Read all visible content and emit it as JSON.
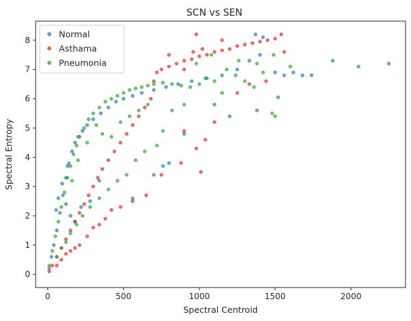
{
  "chart_data": {
    "type": "scatter",
    "title": "SCN vs SEN",
    "xlabel": "Spectral Centroid",
    "ylabel": "Spectral Entropy",
    "xlim": [
      -80,
      2360
    ],
    "ylim": [
      -0.45,
      8.65
    ],
    "xticks": [
      0,
      500,
      1000,
      1500,
      2000
    ],
    "yticks": [
      0,
      1,
      2,
      3,
      4,
      5,
      6,
      7,
      8
    ],
    "grid": false,
    "legend_position": "top-left",
    "series": [
      {
        "name": "Normal",
        "color": "#1f77b4",
        "points": [
          [
            10,
            0.2
          ],
          [
            25,
            0.6
          ],
          [
            40,
            1.0
          ],
          [
            60,
            1.5
          ],
          [
            80,
            2.1
          ],
          [
            100,
            2.7
          ],
          [
            120,
            3.3
          ],
          [
            140,
            3.8
          ],
          [
            160,
            4.2
          ],
          [
            180,
            4.5
          ],
          [
            200,
            4.7
          ],
          [
            230,
            4.9
          ],
          [
            260,
            5.1
          ],
          [
            300,
            5.3
          ],
          [
            350,
            5.5
          ],
          [
            400,
            5.7
          ],
          [
            450,
            5.9
          ],
          [
            500,
            6.0
          ],
          [
            560,
            6.1
          ],
          [
            620,
            6.2
          ],
          [
            700,
            6.3
          ],
          [
            780,
            6.4
          ],
          [
            860,
            6.5
          ],
          [
            950,
            6.6
          ],
          [
            1050,
            6.7
          ],
          [
            1150,
            6.8
          ],
          [
            1250,
            7.0
          ],
          [
            1330,
            7.3
          ],
          [
            1400,
            7.5
          ],
          [
            1370,
            8.2
          ],
          [
            1420,
            8.1
          ],
          [
            1500,
            6.9
          ],
          [
            1560,
            6.8
          ],
          [
            1620,
            6.9
          ],
          [
            1680,
            6.8
          ],
          [
            1740,
            6.8
          ],
          [
            1880,
            7.3
          ],
          [
            2050,
            7.1
          ],
          [
            2250,
            7.2
          ],
          [
            1520,
            6.05
          ],
          [
            1380,
            5.6
          ],
          [
            1200,
            5.4
          ],
          [
            1100,
            5.8
          ],
          [
            900,
            4.8
          ],
          [
            800,
            3.8
          ],
          [
            700,
            3.4
          ],
          [
            560,
            2.6
          ],
          [
            760,
            3.7
          ],
          [
            340,
            3.2
          ],
          [
            280,
            2.5
          ],
          [
            220,
            2.3
          ],
          [
            180,
            1.8
          ],
          [
            150,
            2.0
          ],
          [
            120,
            2.4
          ],
          [
            95,
            3.1
          ],
          [
            70,
            2.6
          ],
          [
            55,
            2.2
          ],
          [
            130,
            3.7
          ]
        ]
      },
      {
        "name": "Asthama",
        "color": "#d62728",
        "points": [
          [
            10,
            0.1
          ],
          [
            30,
            0.3
          ],
          [
            60,
            0.6
          ],
          [
            90,
            0.9
          ],
          [
            120,
            1.2
          ],
          [
            150,
            1.5
          ],
          [
            180,
            1.8
          ],
          [
            210,
            2.1
          ],
          [
            240,
            2.4
          ],
          [
            270,
            2.7
          ],
          [
            300,
            3.0
          ],
          [
            330,
            3.3
          ],
          [
            360,
            3.6
          ],
          [
            400,
            3.9
          ],
          [
            440,
            4.2
          ],
          [
            480,
            4.5
          ],
          [
            520,
            4.8
          ],
          [
            560,
            5.1
          ],
          [
            600,
            5.4
          ],
          [
            640,
            5.7
          ],
          [
            680,
            6.0
          ],
          [
            700,
            6.6
          ],
          [
            720,
            6.9
          ],
          [
            750,
            7.0
          ],
          [
            800,
            7.1
          ],
          [
            850,
            7.2
          ],
          [
            900,
            7.3
          ],
          [
            950,
            7.35
          ],
          [
            1000,
            7.45
          ],
          [
            1050,
            7.5
          ],
          [
            1100,
            7.6
          ],
          [
            1150,
            7.65
          ],
          [
            1200,
            7.7
          ],
          [
            1250,
            7.8
          ],
          [
            1300,
            7.85
          ],
          [
            1350,
            7.9
          ],
          [
            1400,
            7.95
          ],
          [
            1450,
            8.0
          ],
          [
            1500,
            8.05
          ],
          [
            1540,
            8.2
          ],
          [
            1560,
            7.6
          ],
          [
            1440,
            6.6
          ],
          [
            1330,
            6.5
          ],
          [
            1250,
            6.2
          ],
          [
            1100,
            5.2
          ],
          [
            1040,
            4.6
          ],
          [
            980,
            4.3
          ],
          [
            1010,
            3.5
          ],
          [
            900,
            4.9
          ],
          [
            880,
            3.8
          ],
          [
            750,
            3.4
          ],
          [
            650,
            2.7
          ],
          [
            560,
            2.5
          ],
          [
            480,
            2.3
          ],
          [
            420,
            2.2
          ],
          [
            380,
            1.9
          ],
          [
            340,
            1.7
          ],
          [
            300,
            1.6
          ],
          [
            260,
            1.3
          ],
          [
            210,
            1.0
          ],
          [
            180,
            0.9
          ],
          [
            150,
            0.8
          ],
          [
            120,
            0.7
          ],
          [
            90,
            0.5
          ],
          [
            60,
            0.3
          ],
          [
            980,
            8.2
          ],
          [
            1020,
            7.7
          ],
          [
            960,
            7.6
          ],
          [
            800,
            7.5
          ],
          [
            900,
            7.0
          ],
          [
            1150,
            8.0
          ]
        ]
      },
      {
        "name": "Pneumonia",
        "color": "#2ca02c",
        "points": [
          [
            10,
            0.3
          ],
          [
            30,
            0.8
          ],
          [
            50,
            1.3
          ],
          [
            70,
            1.8
          ],
          [
            90,
            2.3
          ],
          [
            110,
            2.8
          ],
          [
            130,
            3.3
          ],
          [
            150,
            3.7
          ],
          [
            170,
            4.1
          ],
          [
            190,
            4.4
          ],
          [
            210,
            4.7
          ],
          [
            240,
            5.0
          ],
          [
            270,
            5.3
          ],
          [
            300,
            5.5
          ],
          [
            340,
            5.7
          ],
          [
            380,
            5.9
          ],
          [
            420,
            6.0
          ],
          [
            460,
            6.1
          ],
          [
            500,
            6.2
          ],
          [
            540,
            6.3
          ],
          [
            580,
            6.35
          ],
          [
            620,
            6.4
          ],
          [
            660,
            6.45
          ],
          [
            700,
            6.5
          ],
          [
            760,
            6.55
          ],
          [
            820,
            6.5
          ],
          [
            880,
            6.45
          ],
          [
            940,
            6.4
          ],
          [
            1000,
            6.5
          ],
          [
            1040,
            6.7
          ],
          [
            1100,
            6.6
          ],
          [
            1150,
            6.2
          ],
          [
            1180,
            7.0
          ],
          [
            1240,
            6.8
          ],
          [
            1300,
            6.6
          ],
          [
            1360,
            6.4
          ],
          [
            1420,
            6.9
          ],
          [
            1490,
            7.5
          ],
          [
            1480,
            5.5
          ],
          [
            1500,
            5.4
          ],
          [
            1600,
            7.1
          ],
          [
            1380,
            7.2
          ],
          [
            1260,
            7.3
          ],
          [
            1080,
            7.5
          ],
          [
            980,
            7.2
          ],
          [
            900,
            5.8
          ],
          [
            820,
            5.6
          ],
          [
            760,
            4.9
          ],
          [
            720,
            4.4
          ],
          [
            640,
            4.2
          ],
          [
            580,
            3.9
          ],
          [
            520,
            3.4
          ],
          [
            460,
            3.2
          ],
          [
            400,
            2.9
          ],
          [
            340,
            2.6
          ],
          [
            280,
            2.3
          ],
          [
            230,
            2.0
          ],
          [
            190,
            1.7
          ],
          [
            150,
            1.4
          ],
          [
            120,
            1.1
          ],
          [
            90,
            0.9
          ],
          [
            60,
            0.6
          ],
          [
            160,
            3.2
          ],
          [
            200,
            3.9
          ],
          [
            260,
            4.5
          ],
          [
            320,
            5.1
          ],
          [
            360,
            4.8
          ],
          [
            420,
            4.7
          ],
          [
            480,
            5.2
          ],
          [
            540,
            5.4
          ],
          [
            600,
            5.6
          ],
          [
            660,
            5.8
          ]
        ]
      }
    ]
  }
}
